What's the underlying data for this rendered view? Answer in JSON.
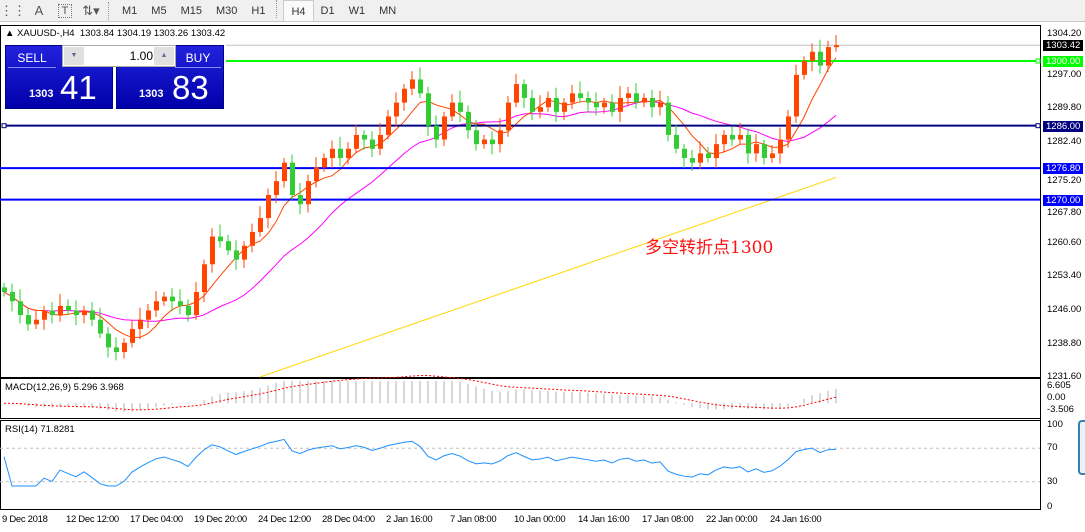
{
  "toolbar": {
    "timeframes": [
      "M1",
      "M5",
      "M15",
      "M30",
      "H1",
      "H4",
      "D1",
      "W1",
      "MN"
    ],
    "selected": "H4",
    "icons": [
      "grid-icon",
      "text-icon",
      "text-label-icon",
      "arrows-icon"
    ],
    "text_glyph": "A",
    "label_glyph": "T"
  },
  "header": {
    "symbol": "XAUUSD-,H4",
    "open": "1303.84",
    "high": "1304.19",
    "low": "1303.26",
    "close": "1303.42"
  },
  "trade_panel": {
    "sell_label": "SELL",
    "buy_label": "BUY",
    "lot": "1.00",
    "sell_prefix": "1303",
    "sell_big": "41",
    "buy_prefix": "1303",
    "buy_big": "83"
  },
  "annotation": "多空转折点1300",
  "colors": {
    "bull": "#ff4500",
    "bear": "#32cd32",
    "ma_fast": "#ff4500",
    "ma_mid": "#ff00ff",
    "ma_slow": "#ffd700",
    "macd_signal": "#ff0000",
    "rsi": "#1e90ff",
    "bid_line": "#c0c0c0"
  },
  "chart_data": {
    "type": "candlestick",
    "price_axis": {
      "ticks": [
        "1304.20",
        "1297.00",
        "1289.80",
        "1282.40",
        "1275.20",
        "1267.80",
        "1260.60",
        "1253.40",
        "1246.00",
        "1238.80",
        "1231.60"
      ],
      "range": [
        1231.6,
        1304.2
      ]
    },
    "levels": [
      {
        "price": "1303.42",
        "color": "#000000"
      },
      {
        "price": "1300.00",
        "color": "#00ff00"
      },
      {
        "price": "1286.00",
        "color": "#000080"
      },
      {
        "price": "1276.80",
        "color": "#0000ff"
      },
      {
        "price": "1270.00",
        "color": "#0000ff"
      }
    ],
    "closes": [
      1250,
      1248,
      1245,
      1243,
      1244,
      1246,
      1245,
      1247,
      1246,
      1245,
      1246,
      1244,
      1241,
      1238,
      1237,
      1239,
      1242,
      1244,
      1246,
      1248,
      1249,
      1248,
      1247,
      1245,
      1250,
      1256,
      1262,
      1261,
      1259,
      1257,
      1260,
      1263,
      1266,
      1271,
      1274,
      1278,
      1271,
      1269,
      1274,
      1277,
      1279,
      1281,
      1279,
      1281,
      1284,
      1283,
      1281,
      1284,
      1288,
      1291,
      1294,
      1296,
      1293,
      1286,
      1283,
      1288,
      1291,
      1289,
      1285,
      1282,
      1283,
      1282,
      1285,
      1291,
      1295,
      1292,
      1289,
      1290,
      1292,
      1289,
      1291,
      1293,
      1292,
      1291,
      1290,
      1291,
      1289,
      1292,
      1293,
      1291,
      1292,
      1290,
      1291,
      1284,
      1281,
      1279,
      1278,
      1280,
      1279,
      1282,
      1284,
      1283,
      1284,
      1280,
      1282,
      1279,
      1280,
      1283,
      1288,
      1297,
      1300,
      1302,
      1299,
      1303,
      1303.42
    ],
    "ma_slow_range": [
      1231.6,
      1274.8
    ],
    "x_labels": [
      "9 Dec 2018",
      "12 Dec 12:00",
      "17 Dec 04:00",
      "19 Dec 20:00",
      "24 Dec 12:00",
      "28 Dec 04:00",
      "2 Jan 16:00",
      "7 Jan 08:00",
      "10 Jan 00:00",
      "14 Jan 16:00",
      "17 Jan 08:00",
      "22 Jan 00:00",
      "24 Jan 16:00"
    ],
    "macd": {
      "label": "MACD(12,26,9) 5.296 3.968",
      "ticks": [
        "6.605",
        "0.00",
        "-3.506"
      ],
      "range": [
        -3.506,
        6.605
      ]
    },
    "rsi": {
      "label": "RSI(14) 71.8281",
      "ticks": [
        "100",
        "70",
        "30",
        "0"
      ],
      "levels": [
        70,
        30
      ]
    }
  }
}
